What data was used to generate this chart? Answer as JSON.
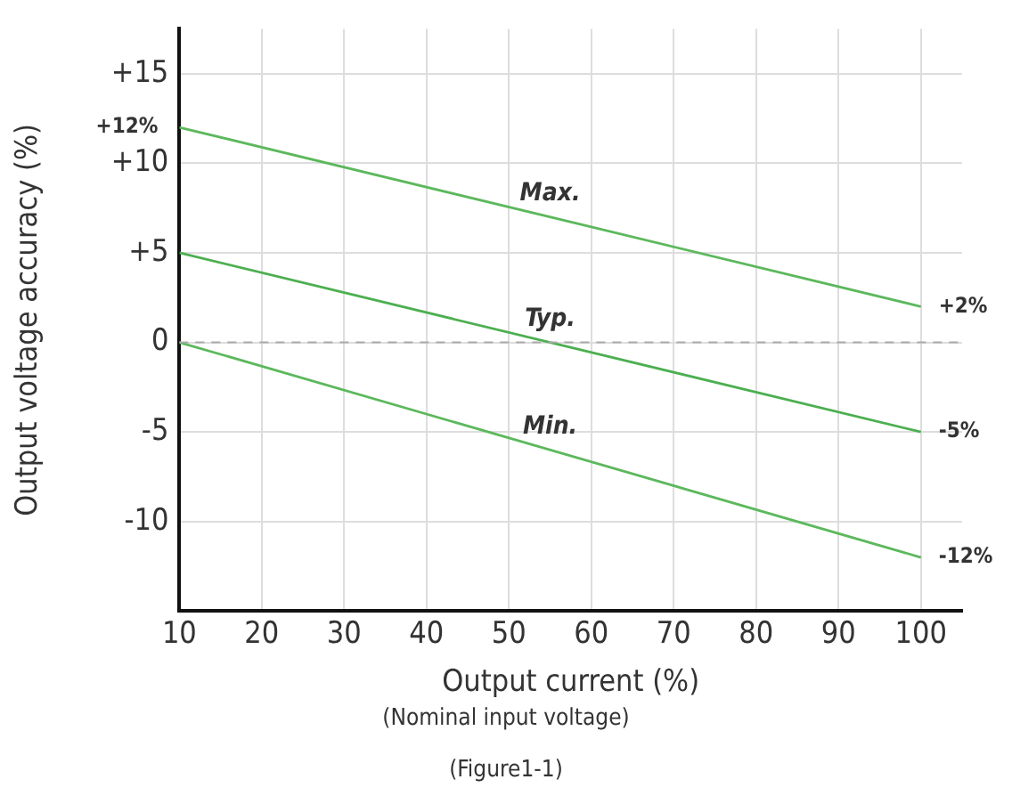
{
  "chart_data": {
    "type": "line",
    "xlabel": "Output current (%)",
    "ylabel": "Output voltage accuracy (%)",
    "x": [
      10,
      100
    ],
    "series": [
      {
        "name": "Max.",
        "color": "#5cb85c",
        "values": [
          12,
          2
        ],
        "value_labels": [
          "+12%",
          "+2%"
        ]
      },
      {
        "name": "Typ.",
        "color": "#4caf50",
        "values": [
          5,
          -5
        ],
        "value_labels": [
          null,
          "-5%"
        ]
      },
      {
        "name": "Min.",
        "color": "#5cb85c",
        "values": [
          0,
          -12
        ],
        "value_labels": [
          null,
          "-12%"
        ]
      }
    ],
    "xlim": [
      10,
      105
    ],
    "xticks": [
      10,
      20,
      30,
      40,
      50,
      60,
      70,
      80,
      90,
      100
    ],
    "ylim": [
      -15,
      17.5
    ],
    "yticks": [
      {
        "value": -10,
        "label": "-10"
      },
      {
        "value": -5,
        "label": "-5"
      },
      {
        "value": 0,
        "label": "0"
      },
      {
        "value": 5,
        "label": "+5"
      },
      {
        "value": 10,
        "label": "+10"
      },
      {
        "value": 15,
        "label": "+15"
      }
    ],
    "ref_lines": [
      {
        "axis": "y",
        "value": 0,
        "color": "#aaaaaa",
        "line_style": "dashed"
      }
    ],
    "annotations": [
      "(Nominal input voltage)",
      "(Figure1-1)"
    ],
    "grid": true,
    "legend": false,
    "marker": "none",
    "line_style": "solid"
  }
}
